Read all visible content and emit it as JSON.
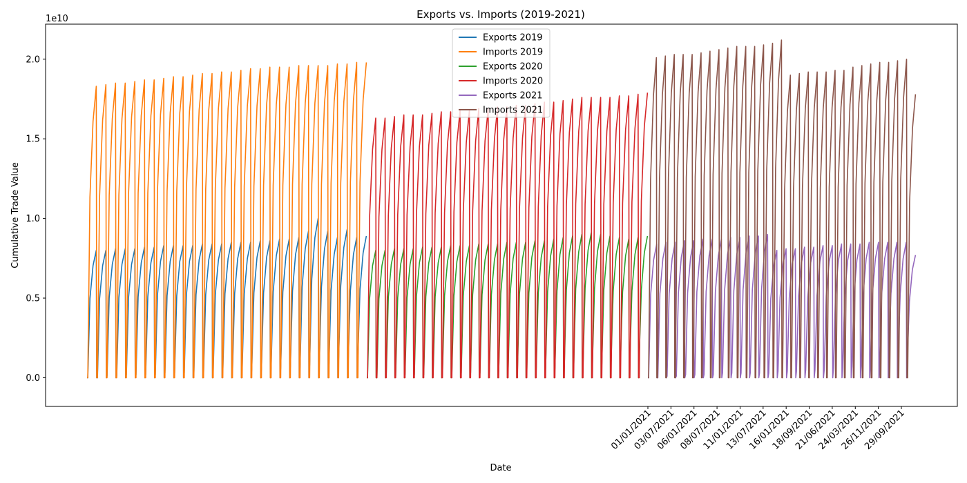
{
  "chart_data": {
    "type": "line",
    "title": "Exports vs. Imports (2019-2021)",
    "xlabel": "Date",
    "ylabel": "Cumulative Trade Value",
    "y_offset_label": "1e10",
    "ylim": [
      -0.18,
      2.22
    ],
    "y_ticks": [
      0.0,
      0.5,
      1.0,
      1.5,
      2.0
    ],
    "y_tick_labels": [
      "0.0",
      "0.5",
      "1.0",
      "1.5",
      "2.0"
    ],
    "y_unit_multiplier": 10000000000,
    "x_tick_labels": [
      "01/01/2021",
      "03/07/2021",
      "06/01/2021",
      "08/07/2021",
      "11/01/2021",
      "13/07/2021",
      "16/01/2021",
      "18/09/2021",
      "21/06/2021",
      "24/03/2021",
      "26/11/2021",
      "29/09/2021"
    ],
    "grid": false,
    "legend": {
      "placement": "top-center"
    },
    "note": "Each series is a cumulative sum that resets to zero at the start of every cycle (sawtooth). Values per series are the cycle-end peaks in units of 1e10, in order.",
    "series": [
      {
        "name": "Exports 2019",
        "color": "#1f77b4",
        "year_segment": 0,
        "peaks": [
          0.8,
          0.8,
          0.81,
          0.81,
          0.81,
          0.82,
          0.82,
          0.83,
          0.83,
          0.83,
          0.83,
          0.84,
          0.84,
          0.84,
          0.85,
          0.85,
          0.85,
          0.86,
          0.86,
          0.87,
          0.87,
          0.88,
          0.92,
          1.0,
          0.92,
          0.88,
          0.93,
          0.88,
          0.89
        ],
        "troughs": [
          0.0,
          0.0,
          0.01,
          0.01,
          0.02,
          0.02,
          0.02,
          0.02,
          0.03,
          0.03,
          0.03,
          0.03,
          0.03,
          0.04,
          0.04,
          0.04,
          0.05,
          0.05,
          0.05,
          0.06,
          0.06,
          0.07,
          0.07,
          0.08,
          0.09,
          0.09,
          0.11,
          0.12,
          0.14
        ]
      },
      {
        "name": "Imports 2019",
        "color": "#ff7f0e",
        "year_segment": 0,
        "peaks": [
          1.83,
          1.84,
          1.85,
          1.85,
          1.86,
          1.87,
          1.87,
          1.88,
          1.89,
          1.89,
          1.9,
          1.91,
          1.91,
          1.92,
          1.92,
          1.93,
          1.94,
          1.94,
          1.95,
          1.95,
          1.95,
          1.96,
          1.96,
          1.96,
          1.96,
          1.97,
          1.97,
          1.98,
          1.98
        ]
      },
      {
        "name": "Exports 2020",
        "color": "#2ca02c",
        "year_segment": 1,
        "peaks": [
          0.8,
          0.8,
          0.81,
          0.81,
          0.81,
          0.82,
          0.82,
          0.82,
          0.83,
          0.83,
          0.83,
          0.84,
          0.84,
          0.84,
          0.85,
          0.85,
          0.85,
          0.86,
          0.86,
          0.87,
          0.88,
          0.89,
          0.9,
          0.91,
          0.9,
          0.89,
          0.88,
          0.87,
          0.88,
          0.89
        ],
        "troughs": [
          0.0,
          0.0,
          0.01,
          0.01,
          0.02,
          0.02,
          0.02,
          0.02,
          0.03,
          0.03,
          0.03,
          0.03,
          0.03,
          0.04,
          0.04,
          0.04,
          0.05,
          0.05,
          0.05,
          0.06,
          0.06,
          0.07,
          0.07,
          0.08,
          0.09,
          0.09,
          0.11,
          0.12,
          0.13,
          0.14
        ]
      },
      {
        "name": "Imports 2020",
        "color": "#d62728",
        "year_segment": 1,
        "peaks": [
          1.63,
          1.63,
          1.64,
          1.65,
          1.65,
          1.65,
          1.66,
          1.67,
          1.67,
          1.68,
          1.68,
          1.69,
          1.69,
          1.7,
          1.7,
          1.71,
          1.71,
          1.72,
          1.73,
          1.73,
          1.74,
          1.75,
          1.76,
          1.76,
          1.76,
          1.76,
          1.77,
          1.77,
          1.78,
          1.79
        ]
      },
      {
        "name": "Exports 2021",
        "color": "#9467bd",
        "year_segment": 2,
        "peaks": [
          0.84,
          0.85,
          0.85,
          0.86,
          0.86,
          0.87,
          0.87,
          0.87,
          0.88,
          0.88,
          0.89,
          0.89,
          0.9,
          0.8,
          0.81,
          0.81,
          0.82,
          0.82,
          0.83,
          0.83,
          0.84,
          0.84,
          0.84,
          0.85,
          0.85,
          0.85,
          0.85,
          0.85,
          0.77
        ],
        "troughs": [
          0.0,
          0.0,
          0.01,
          0.01,
          0.02,
          0.02,
          0.02,
          0.02,
          0.03,
          0.03,
          0.03,
          0.03,
          0.03,
          0.03,
          0.04,
          0.04,
          0.04,
          0.05,
          0.05,
          0.05,
          0.06,
          0.06,
          0.07,
          0.08,
          0.09,
          0.1,
          0.11,
          0.12,
          0.13
        ]
      },
      {
        "name": "Imports 2021",
        "color": "#8c564b",
        "year_segment": 2,
        "peaks": [
          2.01,
          2.02,
          2.03,
          2.03,
          2.03,
          2.04,
          2.05,
          2.06,
          2.07,
          2.08,
          2.08,
          2.08,
          2.09,
          2.1,
          2.12,
          1.9,
          1.91,
          1.92,
          1.92,
          1.92,
          1.93,
          1.93,
          1.95,
          1.96,
          1.97,
          1.98,
          1.98,
          1.99,
          2.0,
          1.78
        ]
      }
    ]
  }
}
